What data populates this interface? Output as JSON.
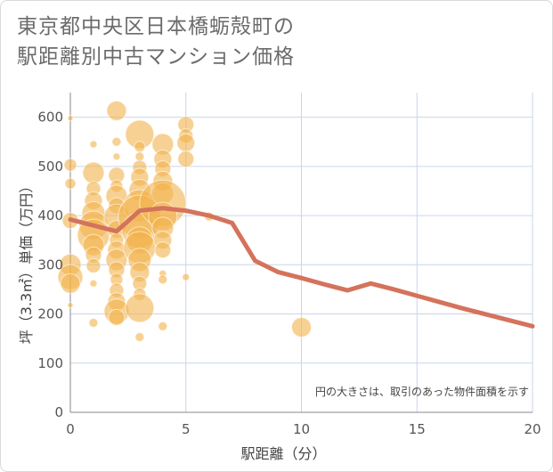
{
  "title": "東京都中央区日本橋蛎殻町の\n駅距離別中古マンション価格",
  "chart_data": {
    "type": "scatter",
    "title": "東京都中央区日本橋蛎殻町の駅距離別中古マンション価格",
    "xlabel": "駅距離（分）",
    "ylabel": "坪（3.3㎡）単価（万円）",
    "xlim": [
      0,
      20
    ],
    "ylim": [
      0,
      650
    ],
    "xticks": [
      0,
      5,
      10,
      15,
      20
    ],
    "yticks": [
      0,
      100,
      200,
      300,
      400,
      500,
      600
    ],
    "grid": true,
    "annotation": "円の大きさは、取引のあった物件面積を示す",
    "colors": {
      "bubble": "#f2b24b",
      "line": "#d4735c",
      "grid": "#c9d6ea"
    },
    "bubbles": [
      {
        "x": 0,
        "y": 598,
        "s": 3
      },
      {
        "x": 0,
        "y": 503,
        "s": 7
      },
      {
        "x": 0,
        "y": 465,
        "s": 6
      },
      {
        "x": 0,
        "y": 390,
        "s": 9
      },
      {
        "x": 0,
        "y": 300,
        "s": 12
      },
      {
        "x": 0,
        "y": 275,
        "s": 14
      },
      {
        "x": 0,
        "y": 262,
        "s": 11
      },
      {
        "x": 0,
        "y": 218,
        "s": 3
      },
      {
        "x": 1,
        "y": 545,
        "s": 4
      },
      {
        "x": 1,
        "y": 487,
        "s": 12
      },
      {
        "x": 1,
        "y": 455,
        "s": 8
      },
      {
        "x": 1,
        "y": 430,
        "s": 10
      },
      {
        "x": 1,
        "y": 405,
        "s": 13
      },
      {
        "x": 1,
        "y": 380,
        "s": 16
      },
      {
        "x": 1,
        "y": 360,
        "s": 18
      },
      {
        "x": 1,
        "y": 340,
        "s": 12
      },
      {
        "x": 1,
        "y": 320,
        "s": 9
      },
      {
        "x": 1,
        "y": 298,
        "s": 8
      },
      {
        "x": 1,
        "y": 262,
        "s": 4
      },
      {
        "x": 1,
        "y": 182,
        "s": 5
      },
      {
        "x": 2,
        "y": 613,
        "s": 11
      },
      {
        "x": 2,
        "y": 550,
        "s": 5
      },
      {
        "x": 2,
        "y": 520,
        "s": 4
      },
      {
        "x": 2,
        "y": 482,
        "s": 9
      },
      {
        "x": 2,
        "y": 460,
        "s": 7
      },
      {
        "x": 2,
        "y": 440,
        "s": 12
      },
      {
        "x": 2,
        "y": 420,
        "s": 9
      },
      {
        "x": 2,
        "y": 398,
        "s": 14
      },
      {
        "x": 2,
        "y": 372,
        "s": 10
      },
      {
        "x": 2,
        "y": 350,
        "s": 8
      },
      {
        "x": 2,
        "y": 330,
        "s": 10
      },
      {
        "x": 2,
        "y": 310,
        "s": 12
      },
      {
        "x": 2,
        "y": 290,
        "s": 9
      },
      {
        "x": 2,
        "y": 270,
        "s": 7
      },
      {
        "x": 2,
        "y": 248,
        "s": 8
      },
      {
        "x": 2,
        "y": 225,
        "s": 10
      },
      {
        "x": 2,
        "y": 205,
        "s": 14
      },
      {
        "x": 2,
        "y": 193,
        "s": 9
      },
      {
        "x": 3,
        "y": 565,
        "s": 16
      },
      {
        "x": 3,
        "y": 540,
        "s": 6
      },
      {
        "x": 3,
        "y": 520,
        "s": 5
      },
      {
        "x": 3,
        "y": 498,
        "s": 8
      },
      {
        "x": 3,
        "y": 478,
        "s": 10
      },
      {
        "x": 3,
        "y": 452,
        "s": 12
      },
      {
        "x": 3,
        "y": 420,
        "s": 18
      },
      {
        "x": 3,
        "y": 398,
        "s": 24
      },
      {
        "x": 3,
        "y": 370,
        "s": 20
      },
      {
        "x": 3,
        "y": 350,
        "s": 15
      },
      {
        "x": 3,
        "y": 335,
        "s": 18
      },
      {
        "x": 3,
        "y": 310,
        "s": 13
      },
      {
        "x": 3,
        "y": 285,
        "s": 11
      },
      {
        "x": 3,
        "y": 262,
        "s": 8
      },
      {
        "x": 3,
        "y": 240,
        "s": 7
      },
      {
        "x": 3,
        "y": 212,
        "s": 16
      },
      {
        "x": 3,
        "y": 153,
        "s": 5
      },
      {
        "x": 4,
        "y": 545,
        "s": 12
      },
      {
        "x": 4,
        "y": 515,
        "s": 10
      },
      {
        "x": 4,
        "y": 495,
        "s": 9
      },
      {
        "x": 4,
        "y": 470,
        "s": 11
      },
      {
        "x": 4,
        "y": 445,
        "s": 12
      },
      {
        "x": 4,
        "y": 425,
        "s": 26
      },
      {
        "x": 4,
        "y": 398,
        "s": 16
      },
      {
        "x": 4,
        "y": 375,
        "s": 12
      },
      {
        "x": 4,
        "y": 350,
        "s": 10
      },
      {
        "x": 4,
        "y": 330,
        "s": 9
      },
      {
        "x": 4,
        "y": 282,
        "s": 4
      },
      {
        "x": 4,
        "y": 270,
        "s": 5
      },
      {
        "x": 4,
        "y": 175,
        "s": 5
      },
      {
        "x": 5,
        "y": 585,
        "s": 9
      },
      {
        "x": 5,
        "y": 562,
        "s": 8
      },
      {
        "x": 5,
        "y": 548,
        "s": 10
      },
      {
        "x": 5,
        "y": 515,
        "s": 9
      },
      {
        "x": 5,
        "y": 275,
        "s": 4
      },
      {
        "x": 6,
        "y": 398,
        "s": 5
      },
      {
        "x": 10,
        "y": 173,
        "s": 11
      }
    ],
    "series": [
      {
        "x": [
          0,
          1,
          2,
          3,
          4,
          5,
          6,
          7,
          8,
          9,
          10,
          11,
          12,
          13,
          14,
          15,
          16,
          17,
          18,
          19,
          20
        ],
        "values": [
          392,
          380,
          368,
          410,
          415,
          410,
          400,
          385,
          308,
          285,
          273,
          260,
          248,
          262,
          250,
          237,
          224,
          211,
          199,
          187,
          175
        ]
      }
    ]
  }
}
